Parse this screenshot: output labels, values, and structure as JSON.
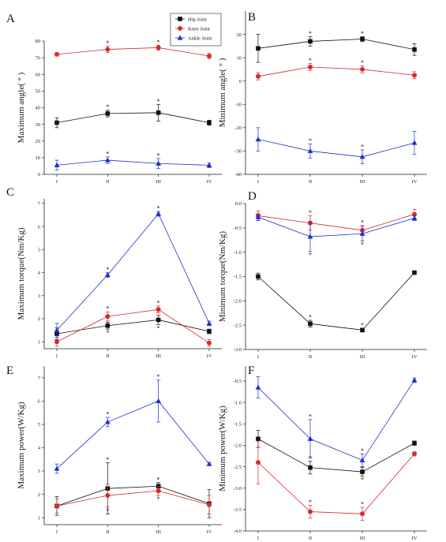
{
  "legend": [
    {
      "name": "Hip Joint",
      "color": "#111111",
      "marker": "square"
    },
    {
      "name": "Knee Joint",
      "color": "#d62b2b",
      "marker": "circle"
    },
    {
      "name": "Ankle Joint",
      "color": "#1f2fd0",
      "marker": "triangle"
    }
  ],
  "chart_data": [
    {
      "type": "line",
      "panel": "A",
      "ylabel": "Maximum angle( ° )",
      "categories": [
        "I",
        "II",
        "III",
        "IV"
      ],
      "ylim": [
        0,
        80
      ],
      "yticks": [
        0,
        10,
        20,
        30,
        40,
        50,
        60,
        70,
        80
      ],
      "series": [
        {
          "name": "Hip Joint",
          "values": [
            31,
            36.5,
            37,
            31
          ],
          "err": [
            3,
            2,
            5,
            1.5
          ],
          "stars": [
            false,
            true,
            true,
            false
          ],
          "star_pos": [
            "",
            "above",
            "above",
            ""
          ]
        },
        {
          "name": "Knee Joint",
          "values": [
            72,
            75,
            76,
            71
          ],
          "err": [
            1,
            2,
            1.5,
            1.5
          ],
          "stars": [
            false,
            true,
            true,
            false
          ],
          "star_pos": [
            "",
            "above",
            "above",
            ""
          ]
        },
        {
          "name": "Ankle Joint",
          "values": [
            5.5,
            8.5,
            6.5,
            5.5
          ],
          "err": [
            3,
            2,
            3,
            1.5
          ],
          "stars": [
            false,
            true,
            true,
            false
          ],
          "star_pos": [
            "",
            "above",
            "above",
            ""
          ]
        }
      ]
    },
    {
      "type": "line",
      "panel": "B",
      "ylabel": "Minimum angle( ° )",
      "categories": [
        "I",
        "II",
        "III",
        "IV"
      ],
      "ylim": [
        -40,
        30
      ],
      "yticks": [
        -40,
        -30,
        -20,
        -10,
        0,
        10,
        20
      ],
      "series": [
        {
          "name": "Hip Joint",
          "values": [
            14,
            17,
            18,
            13.5
          ],
          "err": [
            6,
            2,
            1,
            2.5
          ],
          "stars": [
            false,
            true,
            true,
            false
          ],
          "star_pos": [
            "",
            "above",
            "above",
            ""
          ]
        },
        {
          "name": "Knee Joint",
          "values": [
            2,
            6,
            5,
            2.5
          ],
          "err": [
            1.5,
            1.5,
            1.5,
            1.5
          ],
          "stars": [
            false,
            true,
            true,
            false
          ],
          "star_pos": [
            "",
            "above",
            "above",
            ""
          ]
        },
        {
          "name": "Ankle Joint",
          "values": [
            -25,
            -30,
            -32.5,
            -26.5
          ],
          "err": [
            5,
            3,
            3,
            5
          ],
          "stars": [
            false,
            true,
            true,
            false
          ],
          "star_pos": [
            "",
            "above",
            "above",
            ""
          ]
        }
      ]
    },
    {
      "type": "line",
      "panel": "C",
      "ylabel": "Maximum torque(Nm/Kg)",
      "categories": [
        "I",
        "II",
        "III",
        "IV"
      ],
      "ylim": [
        0.7,
        7.2
      ],
      "yticks": [
        1,
        2,
        3,
        4,
        5,
        6,
        7
      ],
      "series": [
        {
          "name": "Hip Joint",
          "values": [
            1.35,
            1.7,
            1.95,
            1.45
          ],
          "err": [
            0.25,
            0.15,
            0.2,
            0.1
          ],
          "stars": [
            false,
            true,
            true,
            false
          ],
          "star_pos": [
            "",
            "below",
            "below",
            ""
          ]
        },
        {
          "name": "Knee Joint",
          "values": [
            1.0,
            2.1,
            2.4,
            0.95
          ],
          "err": [
            0.2,
            0.2,
            0.15,
            0.15
          ],
          "stars": [
            false,
            true,
            true,
            false
          ],
          "star_pos": [
            "",
            "above",
            "above",
            ""
          ]
        },
        {
          "name": "Ankle Joint",
          "values": [
            1.5,
            3.9,
            6.55,
            1.8
          ],
          "err": [
            0.3,
            0.1,
            0.1,
            0.1
          ],
          "stars": [
            false,
            true,
            true,
            false
          ],
          "star_pos": [
            "",
            "above",
            "above",
            ""
          ]
        }
      ]
    },
    {
      "type": "line",
      "panel": "D",
      "ylabel": "Minimum torque(Nm/Kg)",
      "categories": [
        "I",
        "II",
        "III",
        "IV"
      ],
      "ylim": [
        -3.0,
        0.0
      ],
      "yticks": [
        -3.0,
        -2.5,
        -2.0,
        -1.5,
        -1.0,
        -0.5,
        0.0
      ],
      "series": [
        {
          "name": "Hip Joint",
          "values": [
            -1.5,
            -2.47,
            -2.6,
            -1.42
          ],
          "err": [
            0.07,
            0.07,
            0.04,
            0.03
          ],
          "stars": [
            false,
            true,
            true,
            false
          ],
          "star_pos": [
            "",
            "above",
            "above",
            ""
          ]
        },
        {
          "name": "Knee Joint",
          "values": [
            -0.25,
            -0.4,
            -0.55,
            -0.22
          ],
          "err": [
            0.1,
            0.15,
            0.1,
            0.1
          ],
          "stars": [
            false,
            true,
            true,
            false
          ],
          "star_pos": [
            "",
            "above",
            "above",
            ""
          ]
        },
        {
          "name": "Ankle Joint",
          "values": [
            -0.28,
            -0.68,
            -0.62,
            -0.3
          ],
          "err": [
            0.07,
            0.3,
            0.15,
            0.05
          ],
          "stars": [
            false,
            true,
            true,
            false
          ],
          "star_pos": [
            "",
            "below",
            "below",
            ""
          ]
        }
      ]
    },
    {
      "type": "line",
      "panel": "E",
      "ylabel": "Maximum power(W/Kg)",
      "categories": [
        "I",
        "II",
        "III",
        "IV"
      ],
      "ylim": [
        0.7,
        7.5
      ],
      "yticks": [
        1,
        2,
        3,
        4,
        5,
        6,
        7
      ],
      "series": [
        {
          "name": "Hip Joint",
          "values": [
            1.5,
            2.25,
            2.35,
            1.6
          ],
          "err": [
            0.4,
            1.1,
            0.15,
            0.6
          ],
          "stars": [
            false,
            true,
            true,
            false
          ],
          "star_pos": [
            "",
            "above",
            "above",
            ""
          ]
        },
        {
          "name": "Knee Joint",
          "values": [
            1.5,
            1.95,
            2.15,
            1.55
          ],
          "err": [
            0.3,
            0.5,
            0.2,
            0.4
          ],
          "stars": [
            false,
            true,
            true,
            false
          ],
          "star_pos": [
            "",
            "below",
            "below",
            ""
          ]
        },
        {
          "name": "Ankle Joint",
          "values": [
            3.1,
            5.1,
            6.0,
            3.3
          ],
          "err": [
            0.2,
            0.2,
            0.9,
            0.05
          ],
          "stars": [
            false,
            true,
            true,
            false
          ],
          "star_pos": [
            "",
            "above",
            "above",
            ""
          ]
        }
      ]
    },
    {
      "type": "line",
      "panel": "F",
      "ylabel": "Minimum power(W/Kg)",
      "categories": [
        "I",
        "II",
        "III",
        "IV"
      ],
      "ylim": [
        -4.0,
        -0.15
      ],
      "yticks": [
        -4.0,
        -3.5,
        -3.0,
        -2.5,
        -2.0,
        -1.5,
        -1.0,
        -0.5
      ],
      "series": [
        {
          "name": "Hip Joint",
          "values": [
            -1.85,
            -2.52,
            -2.62,
            -1.95
          ],
          "err": [
            0.2,
            0.15,
            0.1,
            0.05
          ],
          "stars": [
            false,
            true,
            true,
            false
          ],
          "star_pos": [
            "",
            "above",
            "below",
            ""
          ]
        },
        {
          "name": "Knee Joint",
          "values": [
            -2.4,
            -3.55,
            -3.6,
            -2.2
          ],
          "err": [
            0.5,
            0.15,
            0.15,
            0.05
          ],
          "stars": [
            false,
            true,
            true,
            false
          ],
          "star_pos": [
            "",
            "above",
            "above",
            ""
          ]
        },
        {
          "name": "Ankle Joint",
          "values": [
            -0.65,
            -1.85,
            -2.35,
            -0.48
          ],
          "err": [
            0.25,
            0.45,
            0.15,
            0.05
          ],
          "stars": [
            false,
            true,
            true,
            false
          ],
          "star_pos": [
            "",
            "above",
            "above",
            ""
          ]
        }
      ]
    }
  ]
}
